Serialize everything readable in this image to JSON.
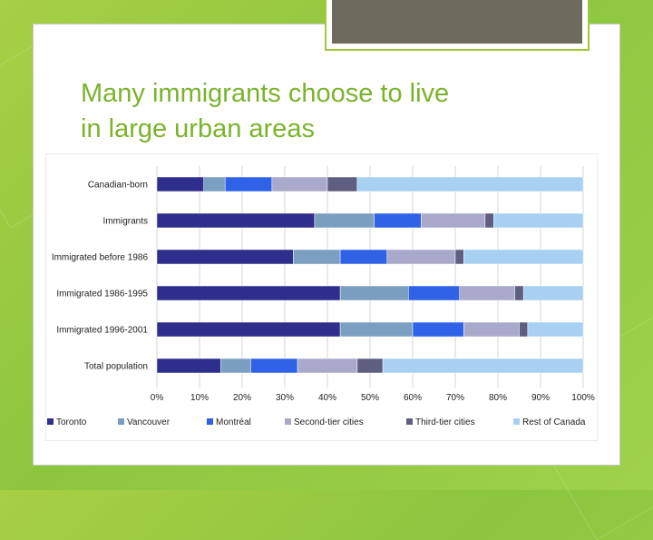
{
  "slide": {
    "title_line1": "Many immigrants choose to live",
    "title_line2": "in large urban areas"
  },
  "colors": {
    "background": "#9ccb45",
    "title": "#7bb32d",
    "thumbnail": "#6f6a5e"
  },
  "chart_data": {
    "type": "bar",
    "orientation": "horizontal",
    "stacked": "percent",
    "categories": [
      "Canadian-born",
      "Immigrants",
      "Immigrated before 1986",
      "Immigrated 1986-1995",
      "Immigrated 1996-2001",
      "Total population"
    ],
    "series": [
      {
        "name": "Toronto",
        "color": "#2e2e8c",
        "values": [
          11,
          37,
          32,
          43,
          43,
          15
        ]
      },
      {
        "name": "Vancouver",
        "color": "#7a9fc0",
        "values": [
          5,
          14,
          11,
          16,
          17,
          7
        ]
      },
      {
        "name": "Montréal",
        "color": "#2f62e6",
        "values": [
          11,
          11,
          11,
          12,
          12,
          11
        ]
      },
      {
        "name": "Second-tier cities",
        "color": "#a9a9cc",
        "values": [
          13,
          15,
          16,
          13,
          13,
          14
        ]
      },
      {
        "name": "Third-tier cities",
        "color": "#5e5e80",
        "values": [
          7,
          2,
          2,
          2,
          2,
          6
        ]
      },
      {
        "name": "Rest of Canada",
        "color": "#a7d0f2",
        "values": [
          53,
          21,
          28,
          14,
          13,
          47
        ]
      }
    ],
    "xlim": [
      0,
      100
    ],
    "x_ticks": [
      "0%",
      "10%",
      "20%",
      "30%",
      "40%",
      "50%",
      "60%",
      "70%",
      "80%",
      "90%",
      "100%"
    ],
    "grid": true,
    "legend": "bottom"
  }
}
